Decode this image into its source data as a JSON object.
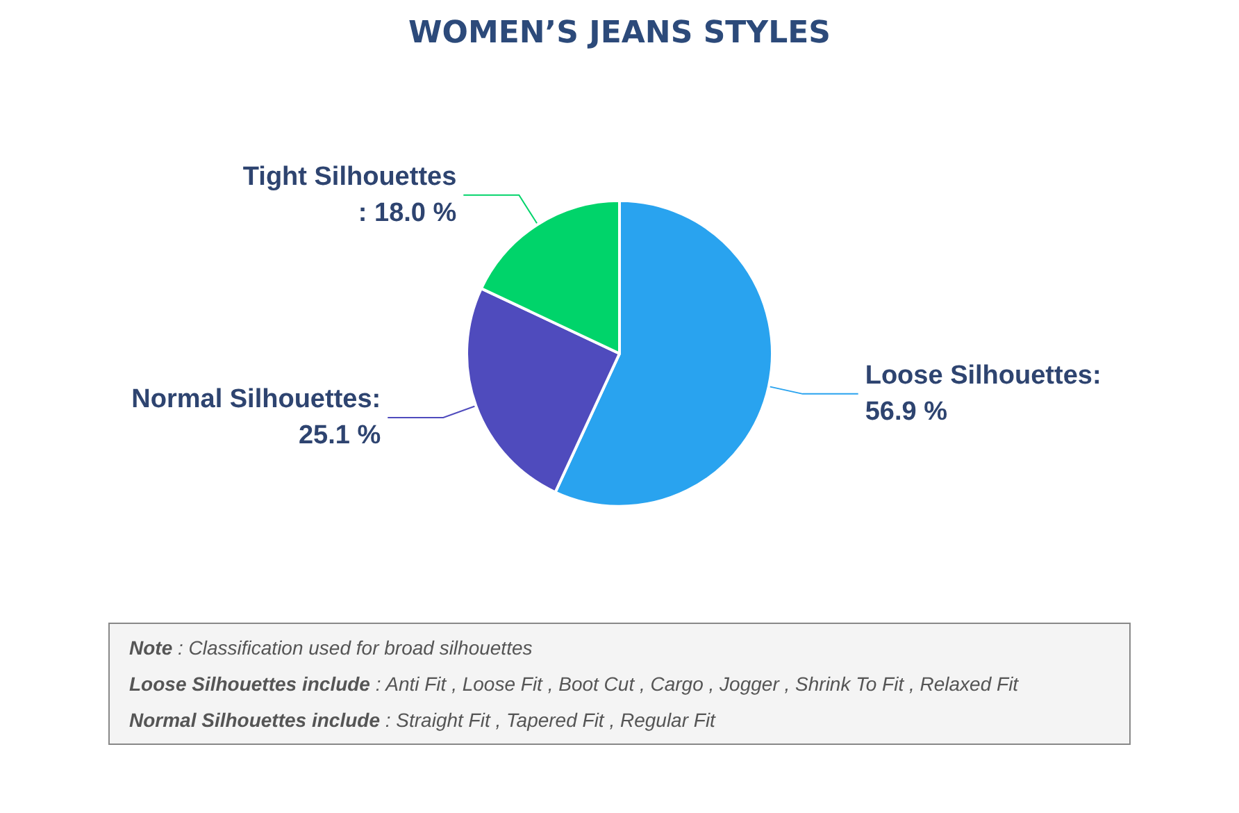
{
  "chart_data": {
    "type": "pie",
    "title": "WOMEN’S JEANS STYLES",
    "categories": [
      "Loose Silhouettes",
      "Normal Silhouettes",
      "Tight Silhouettes"
    ],
    "values": [
      56.9,
      25.1,
      18.0
    ],
    "value_labels": [
      ":\n56.9 %",
      ":\n25.1 %",
      "\n: 18.0 %"
    ],
    "colors": [
      "#29a3ef",
      "#4f4bbd",
      "#00d46a"
    ],
    "legend": false,
    "annotations": [
      "Note : Classification used for broad silhouettes",
      "Loose Silhouettes include : Anti Fit , Loose Fit , Boot Cut , Cargo , Jogger , Shrink To Fit , Relaxed Fit",
      "Normal Silhouettes include : Straight Fit , Tapered Fit , Regular Fit"
    ]
  }
}
